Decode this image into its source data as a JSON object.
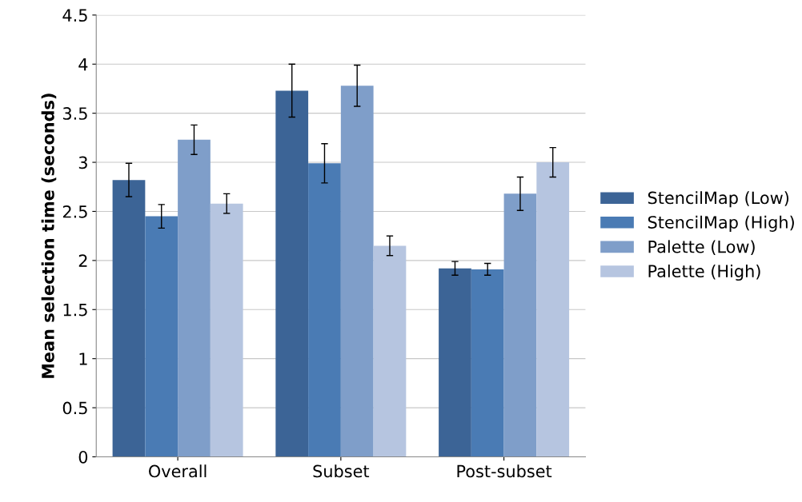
{
  "chart_data": {
    "type": "bar",
    "ylabel": "Mean selection time (seconds)",
    "categories": [
      "Overall",
      "Subset",
      "Post-subset"
    ],
    "series": [
      {
        "name": "StencilMap (Low)",
        "color": "#3c6496",
        "values": [
          2.82,
          3.73,
          1.92
        ],
        "errors": [
          0.17,
          0.27,
          0.07
        ]
      },
      {
        "name": "StencilMap (High)",
        "color": "#4a7bb4",
        "values": [
          2.45,
          2.99,
          1.91
        ],
        "errors": [
          0.12,
          0.2,
          0.06
        ]
      },
      {
        "name": "Palette (Low)",
        "color": "#7f9ec9",
        "values": [
          3.23,
          3.78,
          2.68
        ],
        "errors": [
          0.15,
          0.21,
          0.17
        ]
      },
      {
        "name": "Palette (High)",
        "color": "#b6c5e0",
        "values": [
          2.58,
          2.15,
          3.0
        ],
        "errors": [
          0.1,
          0.1,
          0.15
        ]
      }
    ],
    "ylim": [
      0,
      4.5
    ],
    "yticks": [
      0,
      0.5,
      1,
      1.5,
      2,
      2.5,
      3,
      3.5,
      4,
      4.5
    ],
    "grid": "y",
    "legend": "right"
  }
}
